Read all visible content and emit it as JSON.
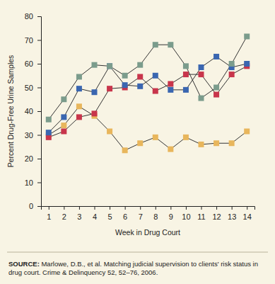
{
  "chart_data": {
    "type": "line",
    "x_label": "Week in Drug Court",
    "y_label": "Percent Drug-Free Urine Samples",
    "x": [
      1,
      2,
      3,
      4,
      5,
      6,
      7,
      8,
      9,
      10,
      11,
      12,
      13,
      14
    ],
    "xlim": [
      0.5,
      14.5
    ],
    "xticks": [
      1,
      2,
      3,
      4,
      5,
      6,
      7,
      8,
      9,
      10,
      11,
      12,
      13,
      14
    ],
    "ylim": [
      0,
      80
    ],
    "yticks": [
      0,
      10,
      20,
      30,
      40,
      50,
      60,
      70,
      80
    ],
    "grid": false,
    "marker": "square",
    "series": [
      {
        "color": "#e8b65c",
        "values": [
          30,
          34,
          42,
          38,
          31.5,
          23.5,
          26.5,
          29,
          24,
          29,
          26,
          26.5,
          26.5,
          31.5
        ]
      },
      {
        "color": "#c8354b",
        "values": [
          29,
          31.5,
          37.5,
          39,
          49.5,
          50,
          54.5,
          48.5,
          51.5,
          55.5,
          55.5,
          47,
          55.5,
          59
        ]
      },
      {
        "color": "#3a66b0",
        "values": [
          31,
          37.5,
          49.5,
          48,
          59,
          51,
          50.5,
          55,
          49,
          49,
          58.5,
          63,
          58.5,
          60
        ]
      },
      {
        "color": "#7b9c8c",
        "values": [
          36.5,
          45,
          54.5,
          59.5,
          59,
          55,
          59.5,
          68,
          68,
          59,
          45.5,
          50,
          60,
          71.5
        ]
      }
    ],
    "annotations": [
      "SOURCE: Marlowe, D.B., et al. Matching judicial supervision to clients' risk status in drug court. Crime & Delinquency 52, 52–76, 2006."
    ]
  }
}
